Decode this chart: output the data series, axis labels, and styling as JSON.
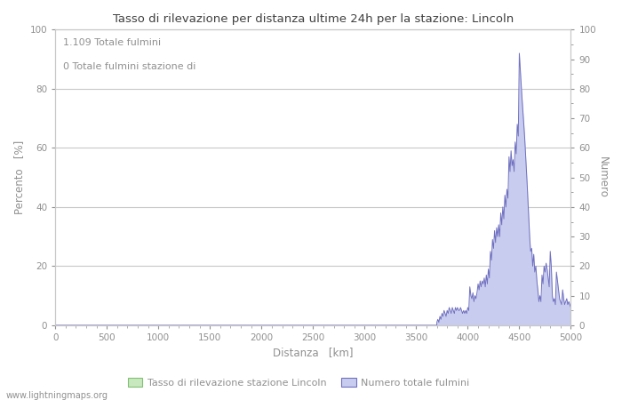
{
  "title": "Tasso di rilevazione per distanza ultime 24h per la stazione: Lincoln",
  "annotation_line1": "1.109 Totale fulmini",
  "annotation_line2": "0 Totale fulmini stazione di",
  "xlabel": "Distanza   [km]",
  "ylabel_left": "Percento   [%]",
  "ylabel_right": "Numero",
  "watermark": "www.lightningmaps.org",
  "legend_green": "Tasso di rilevazione stazione Lincoln",
  "legend_blue": "Numero totale fulmini",
  "xlim": [
    0,
    5000
  ],
  "ylim_left": [
    0,
    100
  ],
  "ylim_right": [
    0,
    100
  ],
  "x_ticks": [
    0,
    500,
    1000,
    1500,
    2000,
    2500,
    3000,
    3500,
    4000,
    4500,
    5000
  ],
  "y_ticks_left": [
    0,
    20,
    40,
    60,
    80,
    100
  ],
  "y_ticks_right": [
    0,
    10,
    20,
    30,
    40,
    50,
    60,
    70,
    80,
    90,
    100
  ],
  "fill_blue_color": "#c8ccee",
  "line_blue_color": "#7070c0",
  "fill_green_color": "#c8e8c0",
  "line_green_color": "#80c070",
  "bg_color": "#ffffff",
  "grid_color": "#c8c8c8",
  "text_color": "#909090",
  "title_color": "#404040",
  "lightning_x": [
    3700,
    3710,
    3720,
    3730,
    3740,
    3750,
    3760,
    3770,
    3780,
    3790,
    3800,
    3810,
    3820,
    3830,
    3840,
    3850,
    3860,
    3870,
    3880,
    3890,
    3900,
    3910,
    3920,
    3930,
    3940,
    3950,
    3960,
    3970,
    3980,
    3990,
    4000,
    4010,
    4020,
    4030,
    4040,
    4050,
    4060,
    4070,
    4080,
    4090,
    4100,
    4110,
    4120,
    4130,
    4140,
    4150,
    4160,
    4170,
    4180,
    4190,
    4200,
    4210,
    4220,
    4230,
    4240,
    4250,
    4260,
    4270,
    4280,
    4290,
    4300,
    4310,
    4320,
    4330,
    4340,
    4350,
    4360,
    4370,
    4380,
    4390,
    4400,
    4410,
    4420,
    4430,
    4440,
    4450,
    4460,
    4470,
    4480,
    4490,
    4500,
    4510,
    4520,
    4530,
    4540,
    4550,
    4560,
    4570,
    4580,
    4590,
    4600,
    4610,
    4620,
    4630,
    4640,
    4650,
    4660,
    4670,
    4680,
    4690,
    4700,
    4710,
    4720,
    4730,
    4740,
    4750,
    4760,
    4770,
    4780,
    4790,
    4800,
    4810,
    4820,
    4830,
    4840,
    4850,
    4860,
    4870,
    4880,
    4890,
    4900,
    4910,
    4920,
    4930,
    4940,
    4950,
    4960,
    4970,
    4980,
    4990,
    5000
  ],
  "lightning_y": [
    1,
    2,
    1,
    3,
    2,
    4,
    3,
    5,
    4,
    3,
    5,
    4,
    6,
    5,
    4,
    6,
    5,
    4,
    6,
    5,
    6,
    5,
    5,
    6,
    5,
    4,
    5,
    4,
    5,
    4,
    6,
    5,
    13,
    10,
    9,
    11,
    8,
    10,
    9,
    11,
    14,
    12,
    15,
    13,
    15,
    14,
    16,
    13,
    17,
    14,
    19,
    16,
    25,
    22,
    29,
    26,
    32,
    28,
    33,
    30,
    34,
    30,
    38,
    34,
    40,
    36,
    44,
    40,
    46,
    43,
    57,
    52,
    59,
    54,
    56,
    52,
    62,
    58,
    68,
    64,
    92,
    86,
    80,
    75,
    70,
    65,
    58,
    52,
    45,
    38,
    30,
    25,
    26,
    20,
    24,
    18,
    20,
    15,
    12,
    8,
    10,
    8,
    17,
    14,
    20,
    18,
    21,
    19,
    16,
    13,
    25,
    20,
    10,
    8,
    9,
    7,
    18,
    15,
    12,
    9,
    8,
    7,
    12,
    9,
    7,
    8,
    9,
    7,
    8,
    7,
    6
  ]
}
